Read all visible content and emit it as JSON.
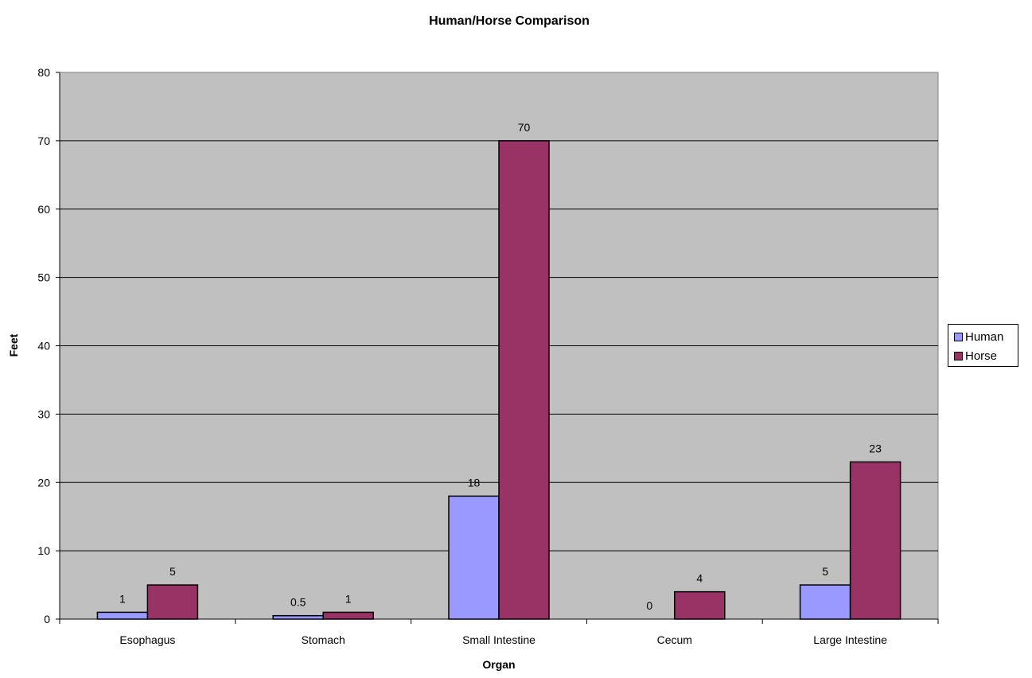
{
  "chart_data": {
    "type": "bar",
    "title": "Human/Horse Comparison",
    "xlabel": "Organ",
    "ylabel": "Feet",
    "categories": [
      "Esophagus",
      "Stomach",
      "Small Intestine",
      "Cecum",
      "Large Intestine"
    ],
    "series": [
      {
        "name": "Human",
        "values": [
          1,
          0.5,
          18,
          0,
          5
        ],
        "color": "#9999ff"
      },
      {
        "name": "Horse",
        "values": [
          5,
          1,
          70,
          4,
          23
        ],
        "color": "#993366"
      }
    ],
    "ylim": [
      0,
      80
    ],
    "yticks": [
      0,
      10,
      20,
      30,
      40,
      50,
      60,
      70,
      80
    ],
    "grid": true,
    "legend_position": "right",
    "plot_background": "#c0c0c0"
  }
}
